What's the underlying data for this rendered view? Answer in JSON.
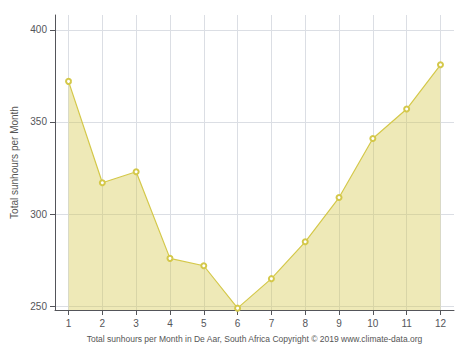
{
  "chart_data": {
    "type": "area",
    "x": [
      1,
      2,
      3,
      4,
      5,
      6,
      7,
      8,
      9,
      10,
      11,
      12
    ],
    "values": [
      372,
      317,
      323,
      276,
      272,
      249,
      265,
      285,
      309,
      341,
      357,
      381
    ],
    "color": "#d4c84a",
    "marker": "circle",
    "ylabel": "Total sunhours per Month",
    "xlabel": "Total sunhours per Month in De Aar, South Africa Copyright © 2019 www.climate-data.org",
    "xlim": [
      0.6,
      12.4
    ],
    "xticks": [
      1,
      2,
      3,
      4,
      5,
      6,
      7,
      8,
      9,
      10,
      11,
      12
    ],
    "ylim": [
      248,
      408
    ],
    "yticks": [
      250,
      300,
      350,
      400
    ],
    "grid": true
  }
}
